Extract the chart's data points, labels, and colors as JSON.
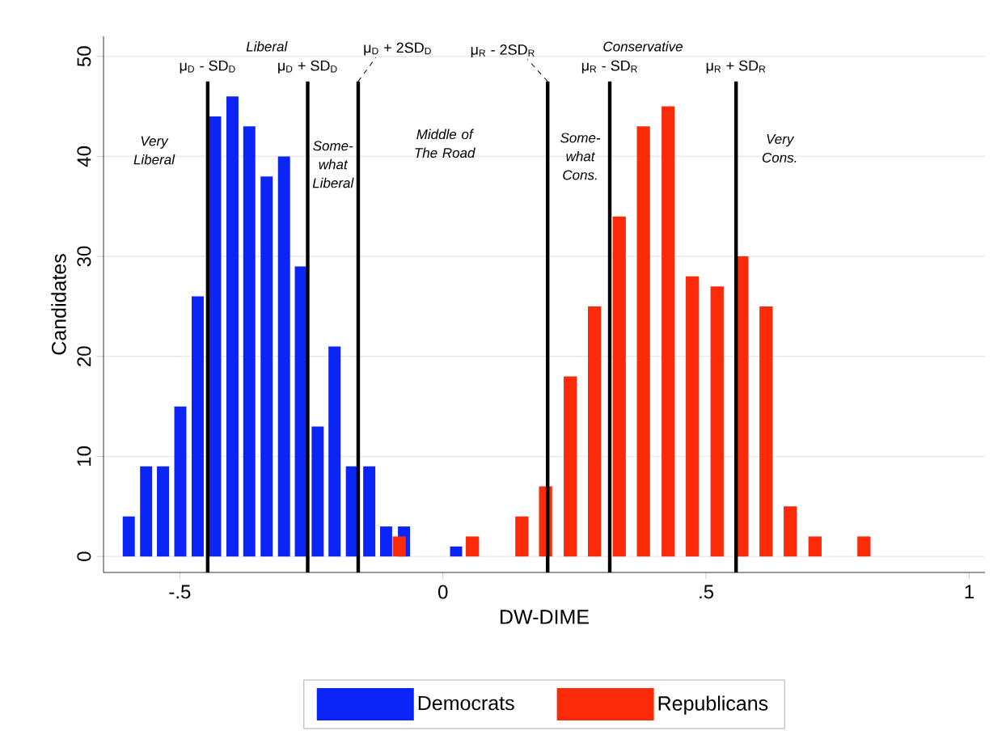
{
  "chart_data": {
    "type": "bar",
    "xlabel": "DW-DIME",
    "ylabel": "Candidates",
    "series": [
      {
        "name": "Democrats",
        "color": "#0b25f6",
        "x": [
          -0.597,
          -0.564,
          -0.532,
          -0.499,
          -0.466,
          -0.433,
          -0.4,
          -0.368,
          -0.335,
          -0.302,
          -0.27,
          -0.238,
          -0.206,
          -0.173,
          -0.14,
          -0.108,
          -0.074,
          0.025
        ],
        "values": [
          4,
          9,
          9,
          15,
          26,
          44,
          46,
          43,
          38,
          40,
          29,
          13,
          21,
          9,
          9,
          3,
          3,
          1
        ]
      },
      {
        "name": "Republicans",
        "color": "#fb2a08",
        "x": [
          -0.083,
          0.056,
          0.15,
          0.195,
          0.242,
          0.288,
          0.335,
          0.381,
          0.428,
          0.474,
          0.521,
          0.568,
          0.614,
          0.66,
          0.707,
          0.8
        ],
        "values": [
          2,
          2,
          4,
          7,
          18,
          25,
          34,
          43,
          45,
          28,
          27,
          30,
          25,
          5,
          2,
          2
        ]
      }
    ],
    "xlim": [
      -0.645,
      1.03
    ],
    "ylim": [
      -1.6,
      52
    ],
    "xticks": [
      {
        "value": -0.5,
        "label": "-.5"
      },
      0,
      {
        "value": 0.5,
        "label": ".5"
      },
      1
    ],
    "yticks": [
      0,
      10,
      20,
      30,
      40,
      50
    ],
    "grid": "y",
    "legend": "bottom",
    "ref_lines": [
      {
        "axis": "x",
        "value": -0.447,
        "label": "μ$_{D}$ - SD$_{D}$",
        "color": "#000000",
        "line_style": "solid"
      },
      {
        "axis": "x",
        "value": -0.257,
        "label": "μ$_{D}$ + SD$_{D}$",
        "color": "#000000",
        "line_style": "solid"
      },
      {
        "axis": "x",
        "value": -0.161,
        "label": "μ$_{D}$ + 2SD$_{D}$",
        "color": "#000000",
        "line_style": "solid"
      },
      {
        "axis": "x",
        "value": 0.199,
        "label": "μ$_{R}$ - 2SD$_{R}$",
        "color": "#000000",
        "line_style": "solid"
      },
      {
        "axis": "x",
        "value": 0.317,
        "label": "μ$_{R}$ - SD$_{R}$",
        "color": "#000000",
        "line_style": "solid"
      },
      {
        "axis": "x",
        "value": 0.557,
        "label": "μ$_{R}$ + SD$_{R}$",
        "color": "#000000",
        "line_style": "solid"
      }
    ],
    "annotations": [
      "Liberal",
      "Conservative",
      "Very Liberal",
      "Some-what Liberal",
      "Middle of The Road",
      "Some-what Cons.",
      "Very Cons."
    ]
  }
}
